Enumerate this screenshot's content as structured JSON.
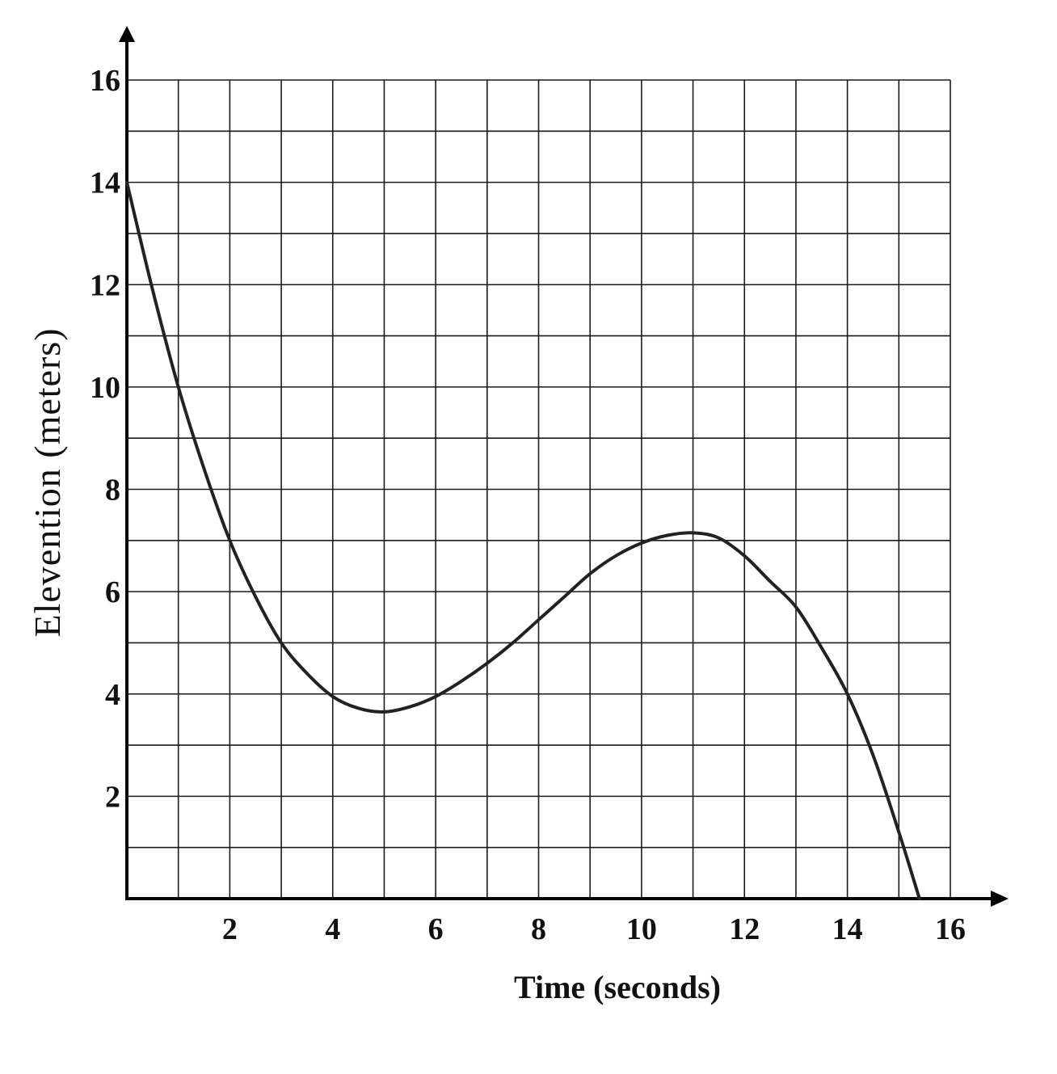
{
  "chart_data": {
    "type": "line",
    "title": "",
    "xlabel": "Time (seconds)",
    "ylabel": "Elevention (meters)",
    "xlim": [
      0,
      16
    ],
    "ylim": [
      0,
      16
    ],
    "x_ticks": [
      2,
      4,
      6,
      8,
      10,
      12,
      14,
      16
    ],
    "y_ticks": [
      2,
      4,
      6,
      8,
      10,
      12,
      14,
      16
    ],
    "grid": true,
    "grid_step": 1,
    "legend": "none",
    "colors": {
      "line": "#222222",
      "grid": "#1a1a1a",
      "axis": "#000000"
    },
    "series": [
      {
        "x": [
          0,
          0.5,
          1,
          1.5,
          2,
          2.5,
          3,
          3.5,
          4,
          4.5,
          5,
          5.5,
          6,
          6.5,
          7,
          7.5,
          8,
          8.5,
          9,
          9.5,
          10,
          10.5,
          11,
          11.5,
          12,
          12.5,
          13,
          13.5,
          14,
          14.5,
          15,
          15.4
        ],
        "y": [
          14,
          11.9,
          10.0,
          8.4,
          7.0,
          5.9,
          5.0,
          4.4,
          3.95,
          3.72,
          3.65,
          3.75,
          3.95,
          4.25,
          4.6,
          5.0,
          5.45,
          5.9,
          6.35,
          6.7,
          6.95,
          7.1,
          7.15,
          7.05,
          6.7,
          6.2,
          5.7,
          4.9,
          4.0,
          2.8,
          1.3,
          0
        ]
      }
    ]
  }
}
